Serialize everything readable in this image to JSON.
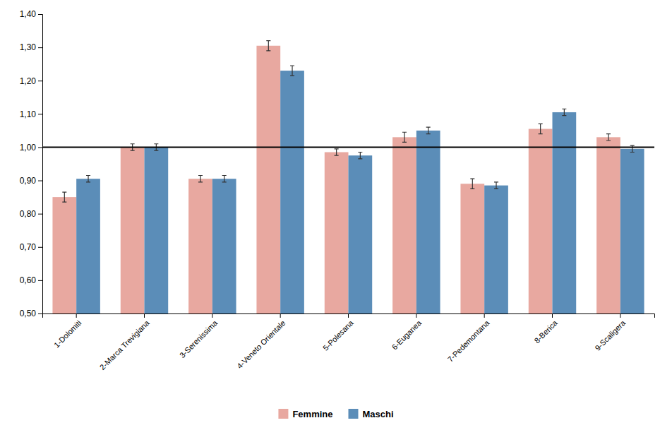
{
  "chart_data": {
    "type": "bar",
    "categories": [
      "1-Dolomiti",
      "2-Marca Trevigiana",
      "3-Serenissima",
      "4-Veneto Orientale",
      "5-Polesana",
      "6-Euganea",
      "7-Pedemontana",
      "8-Berica",
      "9-Scaligera"
    ],
    "series": [
      {
        "name": "Femmine",
        "color": "#e8a8a0",
        "values": [
          0.85,
          1.0,
          0.905,
          1.305,
          0.985,
          1.03,
          0.89,
          1.055,
          1.03
        ],
        "errors": [
          0.015,
          0.01,
          0.01,
          0.015,
          0.01,
          0.015,
          0.015,
          0.015,
          0.01
        ]
      },
      {
        "name": "Maschi",
        "color": "#5b8db8",
        "values": [
          0.905,
          1.0,
          0.905,
          1.23,
          0.975,
          1.05,
          0.885,
          1.105,
          0.995
        ],
        "errors": [
          0.01,
          0.01,
          0.01,
          0.015,
          0.01,
          0.01,
          0.01,
          0.01,
          0.01
        ]
      }
    ],
    "ylim": [
      0.5,
      1.4
    ],
    "yticks": [
      {
        "value": 0.5,
        "label": "0,50"
      },
      {
        "value": 0.6,
        "label": "0,60"
      },
      {
        "value": 0.7,
        "label": "0,70"
      },
      {
        "value": 0.8,
        "label": "0,80"
      },
      {
        "value": 0.9,
        "label": "0,90"
      },
      {
        "value": 1.0,
        "label": "1,00"
      },
      {
        "value": 1.1,
        "label": "1,10"
      },
      {
        "value": 1.2,
        "label": "1,20"
      },
      {
        "value": 1.3,
        "label": "1,30"
      },
      {
        "value": 1.4,
        "label": "1,40"
      }
    ],
    "reference_line": 1.0,
    "grid": false,
    "legend": "bottom"
  }
}
